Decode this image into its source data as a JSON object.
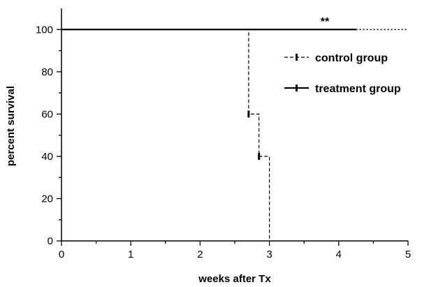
{
  "chart_data": {
    "type": "line",
    "title": "",
    "xlabel": "weeks after Tx",
    "ylabel": "percent survival",
    "xlim": [
      0,
      5
    ],
    "ylim": [
      0,
      110
    ],
    "x_ticks": [
      0,
      1,
      2,
      3,
      4,
      5
    ],
    "y_ticks": [
      0,
      20,
      40,
      60,
      80,
      100
    ],
    "grid": false,
    "legend_position": "right",
    "annotation": "**",
    "annotation_x": 3.8,
    "annotation_y": 104,
    "series": [
      {
        "name": "control group",
        "style": "dashed",
        "color": "#000000",
        "x": [
          0,
          2.7,
          2.7,
          2.85,
          2.85,
          3.0,
          3.0
        ],
        "y": [
          100,
          100,
          60,
          60,
          40,
          40,
          0
        ],
        "censored": [
          {
            "x": 2.7,
            "y": 60
          },
          {
            "x": 2.85,
            "y": 40
          }
        ]
      },
      {
        "name": "treatment group",
        "style": "solid",
        "color": "#000000",
        "x": [
          0,
          4.25
        ],
        "y": [
          100,
          100
        ],
        "extension": {
          "x": [
            4.25,
            5.0
          ],
          "y": [
            100,
            100
          ],
          "style": "dotted"
        }
      }
    ]
  }
}
